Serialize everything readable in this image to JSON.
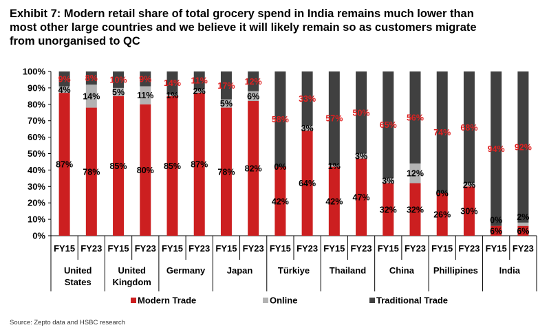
{
  "title_lines": [
    "Exhibit 7: Modern retail share of total grocery spend in India remains much lower than",
    "most other large countries and we believe it will likely remain so as customers migrate",
    "from unorganised to QC"
  ],
  "source": "Source: Zepto data and HSBC research",
  "colors": {
    "modern": "#cc1f20",
    "online": "#b3b3b3",
    "traditional": "#404040",
    "label_red": "#e02020"
  },
  "chart_data": {
    "type": "bar",
    "stacked": true,
    "ylim": [
      0,
      100
    ],
    "y_ticks": [
      "0%",
      "10%",
      "20%",
      "30%",
      "40%",
      "50%",
      "60%",
      "70%",
      "80%",
      "90%",
      "100%"
    ],
    "x_sub_labels": [
      "FY15",
      "FY23"
    ],
    "groups": [
      {
        "name_lines": [
          "United",
          "States"
        ],
        "bars": [
          {
            "period": "FY15",
            "modern": 87,
            "online": 4,
            "traditional": 9
          },
          {
            "period": "FY23",
            "modern": 78,
            "online": 14,
            "traditional": 8
          }
        ]
      },
      {
        "name_lines": [
          "United",
          "Kingdom"
        ],
        "bars": [
          {
            "period": "FY15",
            "modern": 85,
            "online": 5,
            "traditional": 10
          },
          {
            "period": "FY23",
            "modern": 80,
            "online": 11,
            "traditional": 9
          }
        ]
      },
      {
        "name_lines": [
          "Germany"
        ],
        "bars": [
          {
            "period": "FY15",
            "modern": 85,
            "online": 1,
            "traditional": 14
          },
          {
            "period": "FY23",
            "modern": 87,
            "online": 2,
            "traditional": 11
          }
        ]
      },
      {
        "name_lines": [
          "Japan"
        ],
        "bars": [
          {
            "period": "FY15",
            "modern": 78,
            "online": 5,
            "traditional": 17
          },
          {
            "period": "FY23",
            "modern": 82,
            "online": 6,
            "traditional": 12
          }
        ]
      },
      {
        "name_lines": [
          "Türkiye"
        ],
        "bars": [
          {
            "period": "FY15",
            "modern": 42,
            "online": 0,
            "traditional": 58
          },
          {
            "period": "FY23",
            "modern": 64,
            "online": 3,
            "traditional": 33
          }
        ]
      },
      {
        "name_lines": [
          "Thailand"
        ],
        "bars": [
          {
            "period": "FY15",
            "modern": 42,
            "online": 1,
            "traditional": 57
          },
          {
            "period": "FY23",
            "modern": 47,
            "online": 3,
            "traditional": 50
          }
        ]
      },
      {
        "name_lines": [
          "China"
        ],
        "bars": [
          {
            "period": "FY15",
            "modern": 32,
            "online": 3,
            "traditional": 65
          },
          {
            "period": "FY23",
            "modern": 32,
            "online": 12,
            "traditional": 56
          }
        ]
      },
      {
        "name_lines": [
          "Phillipines"
        ],
        "bars": [
          {
            "period": "FY15",
            "modern": 26,
            "online": 0,
            "traditional": 74
          },
          {
            "period": "FY23",
            "modern": 30,
            "online": 2,
            "traditional": 68
          }
        ]
      },
      {
        "name_lines": [
          "India"
        ],
        "bars": [
          {
            "period": "FY15",
            "modern": 6,
            "online": 0,
            "traditional": 94
          },
          {
            "period": "FY23",
            "modern": 6,
            "online": 2,
            "traditional": 92
          }
        ]
      }
    ],
    "legend": [
      {
        "key": "modern",
        "label": "Modern Trade"
      },
      {
        "key": "online",
        "label": "Online"
      },
      {
        "key": "traditional",
        "label": "Traditional Trade"
      }
    ],
    "legend_position": "bottom"
  }
}
